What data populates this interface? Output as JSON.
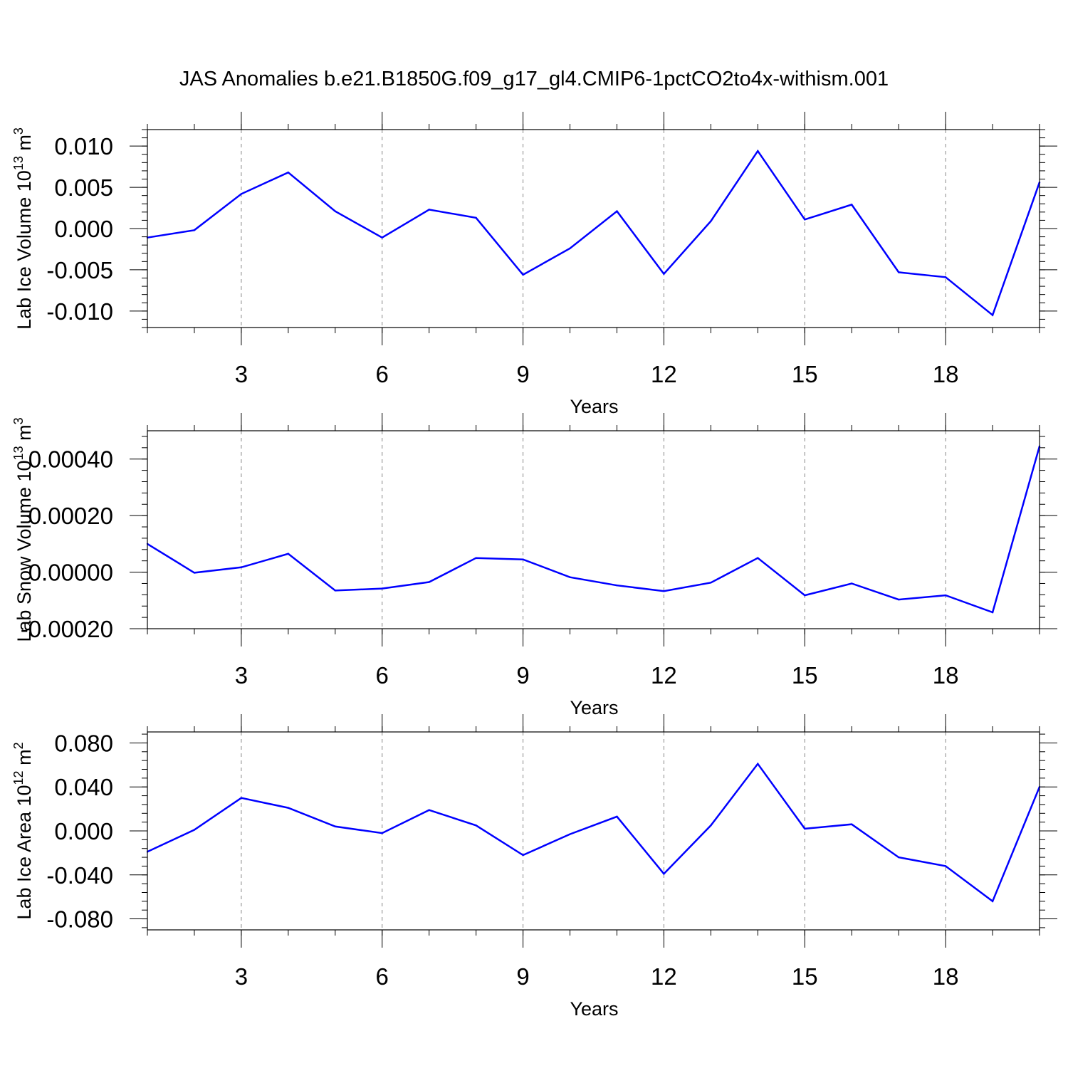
{
  "title": "JAS Anomalies b.e21.B1850G.f09_g17_gl4.CMIP6-1pctCO2to4x-withism.001",
  "line_color": "#0000ff",
  "chart_data": [
    {
      "type": "line",
      "xlabel": "Years",
      "ylabel_text": "Lab Ice Volume 10",
      "ylabel_exp": "13",
      "ylabel_unit": " m",
      "ylabel_unit_exp": "3",
      "xlim": [
        1,
        20
      ],
      "ylim": [
        -0.012,
        0.012
      ],
      "x_ticks": [
        3,
        6,
        9,
        12,
        15,
        18
      ],
      "x_tick_labels": [
        "3",
        "6",
        "9",
        "12",
        "15",
        "18"
      ],
      "y_ticks": [
        0.01,
        0.005,
        0.0,
        -0.005,
        -0.01
      ],
      "y_tick_labels": [
        "0.010",
        "0.005",
        "0.000",
        "-0.005",
        "-0.010"
      ],
      "grid": "vertical dashed at x ticks",
      "series": [
        {
          "x": [
            1,
            2,
            3,
            4,
            5,
            6,
            7,
            8,
            9,
            10,
            11,
            12,
            13,
            14,
            15,
            16,
            17,
            18,
            19,
            20
          ],
          "values": [
            -0.0011,
            -0.0002,
            0.0042,
            0.0068,
            0.0021,
            -0.0011,
            0.0023,
            0.0013,
            -0.0056,
            -0.0024,
            0.0021,
            -0.0055,
            0.0009,
            0.0094,
            0.0011,
            0.0029,
            -0.0053,
            -0.0059,
            -0.0105,
            0.0056
          ]
        }
      ]
    },
    {
      "type": "line",
      "xlabel": "Years",
      "ylabel_text": "Lab Snow Volume 10",
      "ylabel_exp": "13",
      "ylabel_unit": " m",
      "ylabel_unit_exp": "3",
      "xlim": [
        1,
        20
      ],
      "ylim": [
        -0.0002,
        0.0005
      ],
      "x_ticks": [
        3,
        6,
        9,
        12,
        15,
        18
      ],
      "x_tick_labels": [
        "3",
        "6",
        "9",
        "12",
        "15",
        "18"
      ],
      "y_ticks": [
        0.0004,
        0.0002,
        0.0,
        -0.0002
      ],
      "y_tick_labels": [
        "0.00040",
        "0.00020",
        "0.00000",
        "-0.00020"
      ],
      "grid": "vertical dashed at x ticks",
      "series": [
        {
          "x": [
            1,
            2,
            3,
            4,
            5,
            6,
            7,
            8,
            9,
            10,
            11,
            12,
            13,
            14,
            15,
            16,
            17,
            18,
            19,
            20
          ],
          "values": [
            0.0001,
            -2e-06,
            1.7e-05,
            6.5e-05,
            -6.5e-05,
            -5.8e-05,
            -3.5e-05,
            5e-05,
            4.5e-05,
            -1.8e-05,
            -4.7e-05,
            -6.7e-05,
            -3.7e-05,
            5e-05,
            -8.2e-05,
            -4e-05,
            -9.7e-05,
            -8.2e-05,
            -0.000142,
            0.000445
          ]
        }
      ]
    },
    {
      "type": "line",
      "xlabel": "Years",
      "ylabel_text": "Lab Ice Area 10",
      "ylabel_exp": "12",
      "ylabel_unit": " m",
      "ylabel_unit_exp": "2",
      "xlim": [
        1,
        20
      ],
      "ylim": [
        -0.09,
        0.09
      ],
      "x_ticks": [
        3,
        6,
        9,
        12,
        15,
        18
      ],
      "x_tick_labels": [
        "3",
        "6",
        "9",
        "12",
        "15",
        "18"
      ],
      "y_ticks": [
        0.08,
        0.04,
        0.0,
        -0.04,
        -0.08
      ],
      "y_tick_labels": [
        "0.080",
        "0.040",
        "0.000",
        "-0.040",
        "-0.080"
      ],
      "grid": "vertical dashed at x ticks",
      "series": [
        {
          "x": [
            1,
            2,
            3,
            4,
            5,
            6,
            7,
            8,
            9,
            10,
            11,
            12,
            13,
            14,
            15,
            16,
            17,
            18,
            19,
            20
          ],
          "values": [
            -0.019,
            0.001,
            0.03,
            0.021,
            0.004,
            -0.002,
            0.019,
            0.005,
            -0.022,
            -0.003,
            0.013,
            -0.039,
            0.005,
            0.061,
            0.002,
            0.006,
            -0.024,
            -0.032,
            -0.064,
            0.04
          ]
        }
      ]
    }
  ]
}
